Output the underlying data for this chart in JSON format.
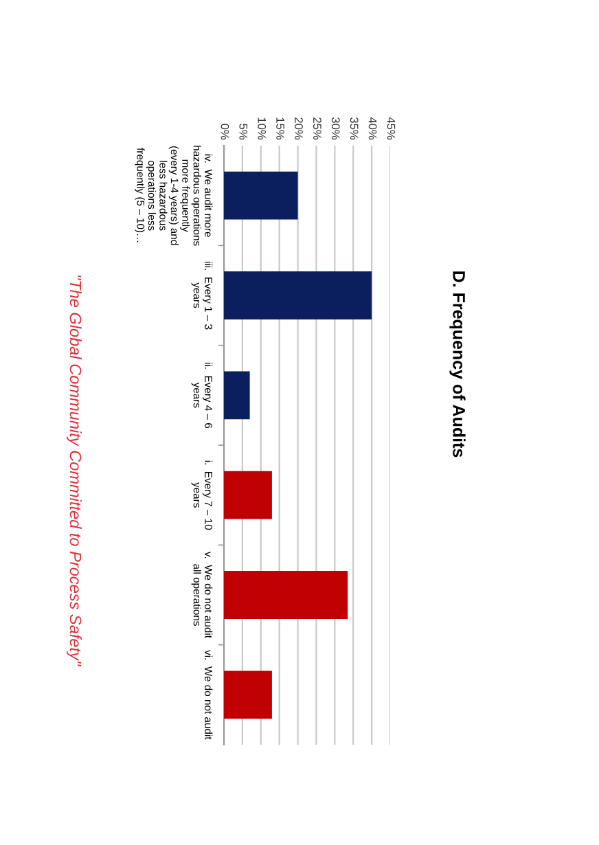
{
  "chart_data": {
    "type": "bar",
    "orientation": "horizontal",
    "title": "D. Frequency of Audits",
    "categories": [
      "iv.  We audit more\nhazardous operations\nmore frequently\n(every 1-4 years) and\nless hazardous\noperations less\nfrequently (5 – 10)…",
      "iii.  Every 1 – 3\nyears",
      "ii.  Every 4 – 6\nyears",
      "i.  Every 7 – 10\nyears",
      "v.  We do not audit\nall operations",
      "vi.  We do not audit"
    ],
    "values": [
      20,
      40,
      7,
      13,
      33.5,
      13
    ],
    "colors": [
      "#0b1f5e",
      "#0b1f5e",
      "#0b1f5e",
      "#c00000",
      "#c00000",
      "#c00000"
    ],
    "xlim": [
      0,
      45
    ],
    "xticks": [
      {
        "value": 0,
        "label": "0%"
      },
      {
        "value": 5,
        "label": "5%"
      },
      {
        "value": 10,
        "label": "10%"
      },
      {
        "value": 15,
        "label": "15%"
      },
      {
        "value": 20,
        "label": "20%"
      },
      {
        "value": 25,
        "label": "25%"
      },
      {
        "value": 30,
        "label": "30%"
      },
      {
        "value": 35,
        "label": "35%"
      },
      {
        "value": 40,
        "label": "40%"
      },
      {
        "value": 45,
        "label": "45%"
      }
    ],
    "grid": "x",
    "annotations": [
      "\"The Global Community Committed to Process Safety\""
    ]
  }
}
